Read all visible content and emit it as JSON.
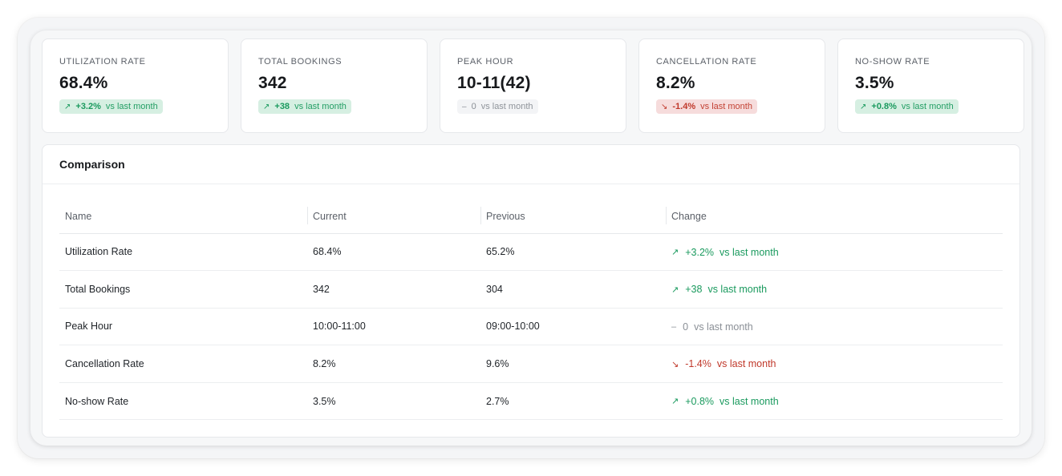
{
  "cards": [
    {
      "label": "UTILIZATION RATE",
      "value": "68.4%",
      "trend": "up",
      "symbol": "↗",
      "delta": "+3.2%",
      "vs": "vs last month"
    },
    {
      "label": "TOTAL BOOKINGS",
      "value": "342",
      "trend": "up",
      "symbol": "↗",
      "delta": "+38",
      "vs": "vs last month"
    },
    {
      "label": "PEAK HOUR",
      "value": "10-11(42)",
      "trend": "flat",
      "symbol": "–",
      "delta": "0",
      "vs": "vs last month"
    },
    {
      "label": "CANCELLATION RATE",
      "value": "8.2%",
      "trend": "down",
      "symbol": "↘",
      "delta": "-1.4%",
      "vs": "vs last month"
    },
    {
      "label": "NO-SHOW RATE",
      "value": "3.5%",
      "trend": "up",
      "symbol": "↗",
      "delta": "+0.8%",
      "vs": "vs last month"
    }
  ],
  "comparison": {
    "title": "Comparison",
    "headers": [
      "Name",
      "Current",
      "Previous",
      "Change"
    ],
    "rows": [
      {
        "name": "Utilization Rate",
        "current": "68.4%",
        "previous": "65.2%",
        "trend": "up",
        "symbol": "↗",
        "delta": "+3.2%",
        "vs": "vs last month"
      },
      {
        "name": "Total Bookings",
        "current": "342",
        "previous": "304",
        "trend": "up",
        "symbol": "↗",
        "delta": "+38",
        "vs": "vs last month"
      },
      {
        "name": "Peak Hour",
        "current": "10:00-11:00",
        "previous": "09:00-10:00",
        "trend": "flat",
        "symbol": "–",
        "delta": "0",
        "vs": "vs last month"
      },
      {
        "name": "Cancellation Rate",
        "current": "8.2%",
        "previous": "9.6%",
        "trend": "down",
        "symbol": "↘",
        "delta": "-1.4%",
        "vs": "vs last month"
      },
      {
        "name": "No-show Rate",
        "current": "3.5%",
        "previous": "2.7%",
        "trend": "up",
        "symbol": "↗",
        "delta": "+0.8%",
        "vs": "vs last month"
      }
    ]
  },
  "colors": {
    "up": "#1a9a5e",
    "down": "#c0392b",
    "flat": "#8a8f96"
  }
}
